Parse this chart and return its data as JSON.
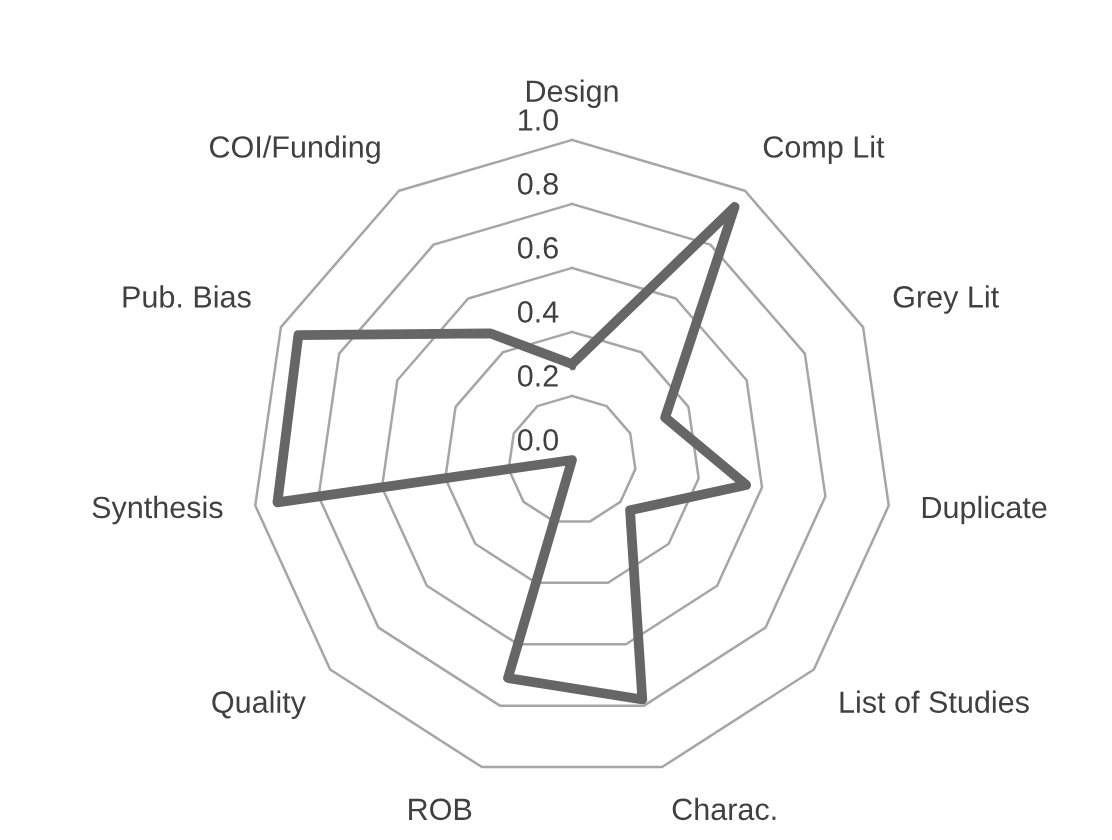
{
  "chart_data": {
    "type": "radar",
    "categories": [
      "Design",
      "Comp Lit",
      "Grey Lit",
      "Duplicate",
      "List of Studies",
      "Charac.",
      "ROB",
      "Quality",
      "Synthesis",
      "Pub. Bias",
      "COI/Funding"
    ],
    "series": [
      {
        "color": "#666666",
        "values": [
          0.3,
          0.94,
          0.32,
          0.55,
          0.24,
          0.78,
          0.71,
          0.0,
          0.93,
          0.94,
          0.47
        ]
      }
    ],
    "ylim": [
      0,
      1
    ],
    "yticks": [
      {
        "value": 0,
        "label": "0.0"
      },
      {
        "value": 0.2,
        "label": "0.2"
      },
      {
        "value": 0.4,
        "label": "0.4"
      },
      {
        "value": 0.6,
        "label": "0.6"
      },
      {
        "value": 0.8,
        "label": "0.8"
      },
      {
        "value": 1,
        "label": "1.0"
      }
    ],
    "grid": true
  }
}
